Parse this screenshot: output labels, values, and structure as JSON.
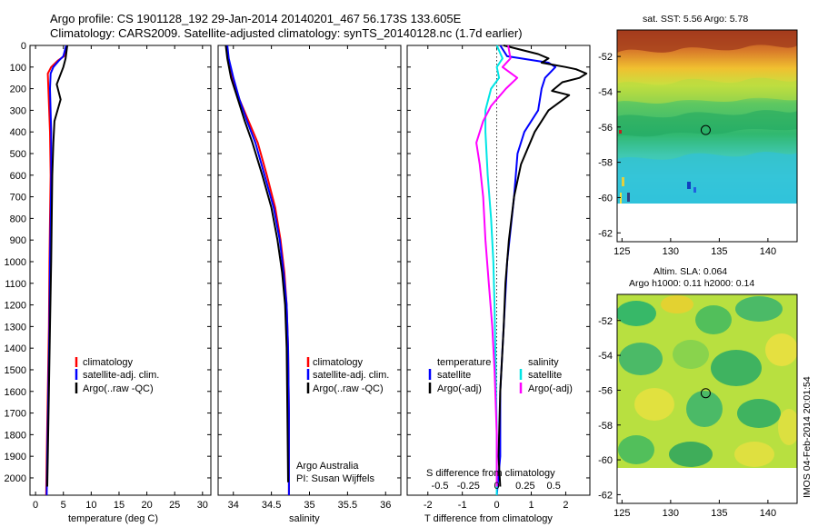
{
  "header": {
    "line1": "Argo profile: CS 1901128_192 29-Jan-2014 20140201_467 56.173S 133.605E",
    "line2": "Climatology: CARS2009. Satellite-adjusted climatology: synTS_20140128.nc (1.7d earlier)"
  },
  "colors": {
    "climatology": "#ff0000",
    "satellite": "#0000ff",
    "argo": "#000000",
    "s_satellite": "#00e5e5",
    "s_argo": "#ff00ff"
  },
  "depth_axis": {
    "ticks": [
      0,
      100,
      200,
      300,
      400,
      500,
      600,
      700,
      800,
      900,
      1000,
      1100,
      1200,
      1300,
      1400,
      1500,
      1600,
      1700,
      1800,
      1900,
      2000
    ],
    "range": [
      0,
      2080
    ]
  },
  "chart_data": [
    {
      "id": "temperature",
      "type": "line",
      "xlabel": "temperature (deg C)",
      "xlim": [
        -1,
        31.5
      ],
      "xticks": [
        0,
        5,
        10,
        15,
        20,
        25,
        30
      ],
      "legend": [
        "climatology",
        "satellite-adj. clim.",
        "Argo(..raw -QC)"
      ],
      "series": [
        {
          "name": "climatology",
          "color": "#ff0000",
          "points": [
            [
              5.6,
              0
            ],
            [
              5.1,
              50
            ],
            [
              4.0,
              70
            ],
            [
              2.8,
              100
            ],
            [
              2.2,
              130
            ],
            [
              2.3,
              200
            ],
            [
              2.6,
              400
            ],
            [
              2.7,
              600
            ],
            [
              2.6,
              800
            ],
            [
              2.5,
              1000
            ],
            [
              2.4,
              1300
            ],
            [
              2.2,
              1600
            ],
            [
              2.0,
              1900
            ],
            [
              1.9,
              2080
            ]
          ]
        },
        {
          "name": "satellite-adj. clim.",
          "color": "#0000ff",
          "points": [
            [
              5.5,
              0
            ],
            [
              5.0,
              50
            ],
            [
              4.2,
              70
            ],
            [
              3.2,
              100
            ],
            [
              2.7,
              130
            ],
            [
              2.6,
              200
            ],
            [
              2.8,
              400
            ],
            [
              2.8,
              600
            ],
            [
              2.7,
              800
            ],
            [
              2.6,
              1000
            ],
            [
              2.5,
              1300
            ],
            [
              2.3,
              1600
            ],
            [
              2.1,
              1900
            ],
            [
              2.0,
              2080
            ]
          ]
        },
        {
          "name": "Argo(..raw -QC)",
          "color": "#000000",
          "points": [
            [
              5.7,
              0
            ],
            [
              5.4,
              60
            ],
            [
              5.0,
              100
            ],
            [
              3.8,
              180
            ],
            [
              4.5,
              250
            ],
            [
              3.4,
              350
            ],
            [
              3.2,
              450
            ],
            [
              3.0,
              600
            ],
            [
              2.9,
              800
            ],
            [
              2.8,
              1000
            ],
            [
              2.6,
              1300
            ],
            [
              2.4,
              1600
            ],
            [
              2.2,
              1900
            ],
            [
              2.1,
              2040
            ]
          ]
        }
      ]
    },
    {
      "id": "salinity",
      "type": "line",
      "xlabel": "salinity",
      "xlim": [
        33.8,
        36.2
      ],
      "xticks": [
        34,
        34.5,
        35,
        35.5,
        36
      ],
      "xticklabels": [
        "34",
        "34.5",
        "35",
        "35.5",
        "36"
      ],
      "legend": [
        "climatology",
        "satellite-adj. clim.",
        "Argo(..raw -QC)"
      ],
      "note_lines": [
        "Argo Australia",
        "PI: Susan Wijffels"
      ],
      "series": [
        {
          "name": "climatology",
          "color": "#ff0000",
          "points": [
            [
              33.91,
              0
            ],
            [
              33.93,
              60
            ],
            [
              33.99,
              150
            ],
            [
              34.08,
              250
            ],
            [
              34.2,
              350
            ],
            [
              34.32,
              450
            ],
            [
              34.44,
              600
            ],
            [
              34.55,
              750
            ],
            [
              34.62,
              900
            ],
            [
              34.67,
              1050
            ],
            [
              34.7,
              1200
            ],
            [
              34.72,
              1400
            ],
            [
              34.73,
              1700
            ],
            [
              34.73,
              2080
            ]
          ]
        },
        {
          "name": "satellite-adj. clim.",
          "color": "#0000ff",
          "points": [
            [
              33.92,
              0
            ],
            [
              33.94,
              60
            ],
            [
              34.0,
              150
            ],
            [
              34.08,
              250
            ],
            [
              34.18,
              350
            ],
            [
              34.29,
              450
            ],
            [
              34.41,
              600
            ],
            [
              34.53,
              750
            ],
            [
              34.61,
              900
            ],
            [
              34.66,
              1050
            ],
            [
              34.7,
              1200
            ],
            [
              34.72,
              1400
            ],
            [
              34.73,
              1700
            ],
            [
              34.73,
              2080
            ]
          ]
        },
        {
          "name": "Argo(..raw -QC)",
          "color": "#000000",
          "points": [
            [
              33.9,
              0
            ],
            [
              33.92,
              60
            ],
            [
              33.97,
              150
            ],
            [
              34.06,
              250
            ],
            [
              34.15,
              350
            ],
            [
              34.25,
              450
            ],
            [
              34.38,
              600
            ],
            [
              34.5,
              750
            ],
            [
              34.58,
              900
            ],
            [
              34.64,
              1050
            ],
            [
              34.68,
              1200
            ],
            [
              34.7,
              1400
            ],
            [
              34.71,
              1700
            ],
            [
              34.72,
              2020
            ]
          ]
        }
      ]
    },
    {
      "id": "difference",
      "type": "line",
      "xlabel": "T difference from climatology",
      "xlabel_top": "S difference from climatology",
      "xlim": [
        -2.6,
        2.7
      ],
      "xticks_T": [
        -2,
        -1,
        0,
        1,
        2
      ],
      "xticklabels_T": [
        "-2",
        "-1",
        "0",
        "1",
        "2"
      ],
      "xticks_S": [
        -0.5,
        -0.25,
        0,
        0.25,
        0.5
      ],
      "xticklabels_S": [
        "-0.5",
        "-0.25",
        "0",
        "0.25",
        "0.5"
      ],
      "legend_temperature_title": "temperature",
      "legend_salinity_title": "salinity",
      "legend_temperature": [
        "satellite",
        "Argo(-adj)"
      ],
      "legend_salinity": [
        "satellite",
        "Argo(-adj)"
      ],
      "series": [
        {
          "name": "temperature satellite",
          "color": "#0000ff",
          "points": [
            [
              0.1,
              0
            ],
            [
              0.3,
              50
            ],
            [
              1.5,
              80
            ],
            [
              1.7,
              100
            ],
            [
              1.4,
              150
            ],
            [
              1.3,
              200
            ],
            [
              1.2,
              300
            ],
            [
              0.8,
              400
            ],
            [
              0.6,
              500
            ],
            [
              0.5,
              700
            ],
            [
              0.3,
              1000
            ],
            [
              0.2,
              1300
            ],
            [
              0.1,
              1600
            ],
            [
              0.1,
              1900
            ],
            [
              0.0,
              2080
            ]
          ]
        },
        {
          "name": "temperature Argo(-adj)",
          "color": "#000000",
          "points": [
            [
              0.2,
              0
            ],
            [
              1.2,
              40
            ],
            [
              1.5,
              60
            ],
            [
              1.3,
              80
            ],
            [
              2.0,
              100
            ],
            [
              2.3,
              110
            ],
            [
              2.6,
              130
            ],
            [
              2.4,
              150
            ],
            [
              1.9,
              170
            ],
            [
              1.6,
              210
            ],
            [
              2.1,
              230
            ],
            [
              1.5,
              300
            ],
            [
              1.1,
              400
            ],
            [
              0.7,
              550
            ],
            [
              0.5,
              700
            ],
            [
              0.35,
              900
            ],
            [
              0.25,
              1100
            ],
            [
              0.2,
              1300
            ],
            [
              0.1,
              1600
            ],
            [
              0.05,
              1900
            ],
            [
              0.1,
              2040
            ]
          ]
        },
        {
          "name": "salinity satellite",
          "color": "#00e5e5",
          "points": [
            [
              0.0,
              0
            ],
            [
              0.05,
              60
            ],
            [
              0.0,
              100
            ],
            [
              0.02,
              150
            ],
            [
              -0.05,
              200
            ],
            [
              -0.1,
              300
            ],
            [
              -0.1,
              400
            ],
            [
              -0.08,
              600
            ],
            [
              -0.05,
              800
            ],
            [
              -0.03,
              1000
            ],
            [
              -0.02,
              1200
            ],
            [
              -0.01,
              1500
            ],
            [
              0.0,
              1800
            ],
            [
              0.0,
              2080
            ]
          ]
        },
        {
          "name": "salinity Argo(-adj)",
          "color": "#ff00ff",
          "points": [
            [
              0.1,
              0
            ],
            [
              0.12,
              60
            ],
            [
              0.05,
              100
            ],
            [
              0.18,
              150
            ],
            [
              0.08,
              200
            ],
            [
              -0.05,
              280
            ],
            [
              -0.12,
              350
            ],
            [
              -0.18,
              450
            ],
            [
              -0.15,
              550
            ],
            [
              -0.12,
              700
            ],
            [
              -0.1,
              900
            ],
            [
              -0.07,
              1100
            ],
            [
              -0.04,
              1300
            ],
            [
              -0.02,
              1500
            ],
            [
              0.0,
              1800
            ],
            [
              0.0,
              2040
            ]
          ]
        }
      ]
    },
    {
      "id": "map-sst",
      "type": "heatmap",
      "title": "sat. SST: 5.56 Argo: 5.78",
      "xticks": [
        125,
        130,
        135,
        140
      ],
      "yticks": [
        -52,
        -54,
        -56,
        -58,
        -60,
        -62
      ],
      "xlim": [
        124.5,
        143
      ],
      "ylim": [
        -62.5,
        -50.5
      ],
      "marker": [
        133.605,
        -56.173
      ]
    },
    {
      "id": "map-sla",
      "type": "heatmap",
      "title_line1": "Altim. SLA: 0.064",
      "title_line2": "Argo h1000: 0.11 h2000: 0.14",
      "xticks": [
        125,
        130,
        135,
        140
      ],
      "yticks": [
        -52,
        -54,
        -56,
        -58,
        -60,
        -62
      ],
      "xlim": [
        124.5,
        143
      ],
      "ylim": [
        -62.5,
        -50.5
      ],
      "marker": [
        133.605,
        -56.173
      ]
    }
  ],
  "watermark": "IMOS 04-Feb-2014 20:01:54"
}
